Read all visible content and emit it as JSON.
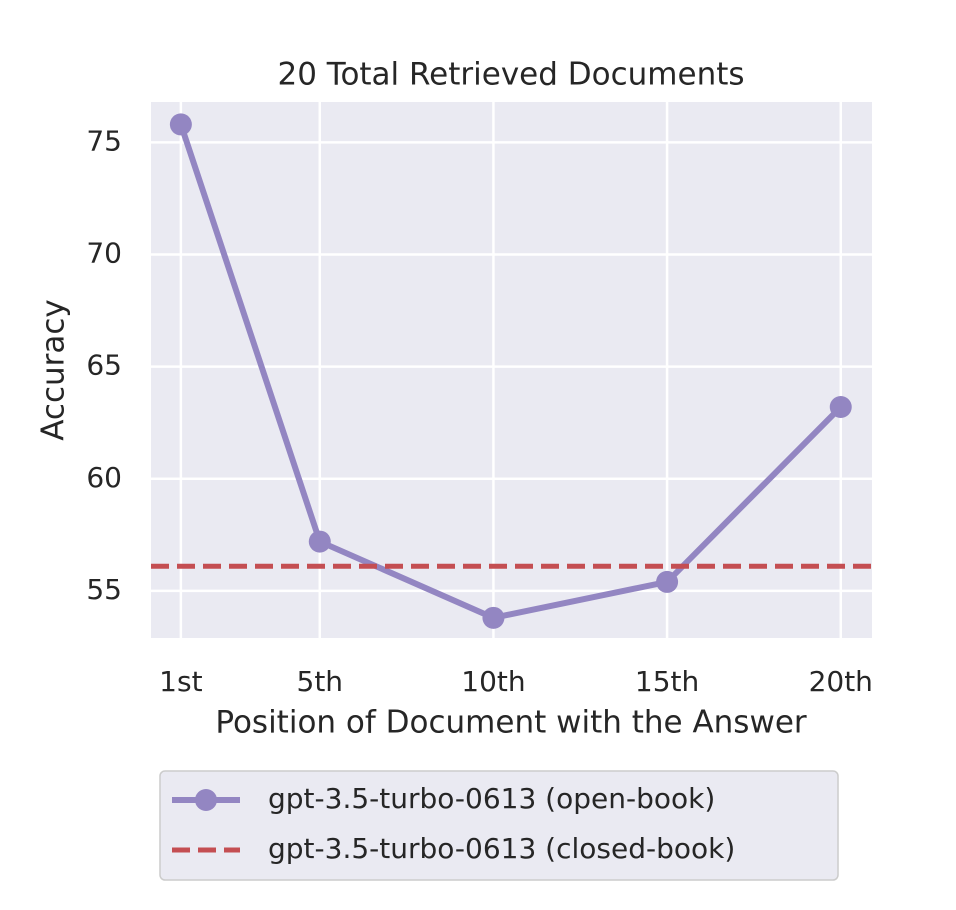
{
  "chart_data": {
    "type": "line",
    "title": "20 Total Retrieved Documents",
    "x_label": "Position of Document with the Answer",
    "y_label": "Accuracy",
    "x": [
      1,
      5,
      10,
      15,
      20
    ],
    "series": [
      {
        "name": "gpt-3.5-turbo-0613 (open-book)",
        "color": "#9386c2",
        "values": [
          75.8,
          57.2,
          53.8,
          55.4,
          63.2
        ]
      }
    ],
    "reference_lines": [
      {
        "name": "gpt-3.5-turbo-0613 (closed-book)",
        "color": "#c44e52",
        "value": 56.1
      }
    ],
    "xlim": [
      0.14,
      20.9
    ],
    "ylim": [
      52.9,
      76.8
    ],
    "xticks": [
      {
        "value": 1,
        "label": "1st"
      },
      {
        "value": 5,
        "label": "5th"
      },
      {
        "value": 10,
        "label": "10th"
      },
      {
        "value": 15,
        "label": "15th"
      },
      {
        "value": 20,
        "label": "20th"
      }
    ],
    "yticks": [
      55,
      60,
      65,
      70,
      75
    ],
    "grid": true,
    "legend_position": "below"
  }
}
